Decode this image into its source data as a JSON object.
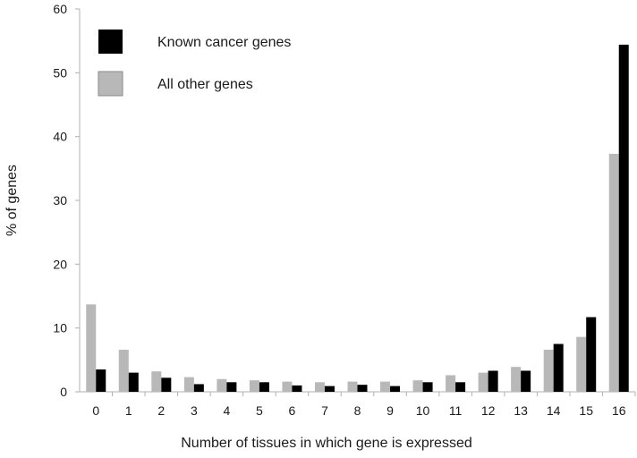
{
  "chart_data": {
    "type": "bar",
    "xlabel": "Number of tissues in which gene is expressed",
    "ylabel": "% of genes",
    "ylim": [
      0,
      60
    ],
    "yticks": [
      0,
      10,
      20,
      30,
      40,
      50,
      60
    ],
    "grid": false,
    "legend_position": "top-left",
    "categories": [
      "0",
      "1",
      "2",
      "3",
      "4",
      "5",
      "6",
      "7",
      "8",
      "9",
      "10",
      "11",
      "12",
      "13",
      "14",
      "15",
      "16"
    ],
    "series": [
      {
        "name": "Known cancer genes",
        "color": "#000000",
        "values": [
          3.5,
          3.0,
          2.2,
          1.2,
          1.5,
          1.5,
          1.0,
          0.9,
          1.1,
          0.9,
          1.5,
          1.5,
          3.3,
          3.3,
          7.5,
          11.7,
          54.4
        ]
      },
      {
        "name": "All other genes",
        "color": "#b8b8b8",
        "values": [
          13.7,
          6.6,
          3.2,
          2.3,
          2.0,
          1.8,
          1.6,
          1.5,
          1.6,
          1.6,
          1.8,
          2.6,
          3.0,
          3.9,
          6.6,
          8.6,
          37.3
        ]
      }
    ]
  }
}
